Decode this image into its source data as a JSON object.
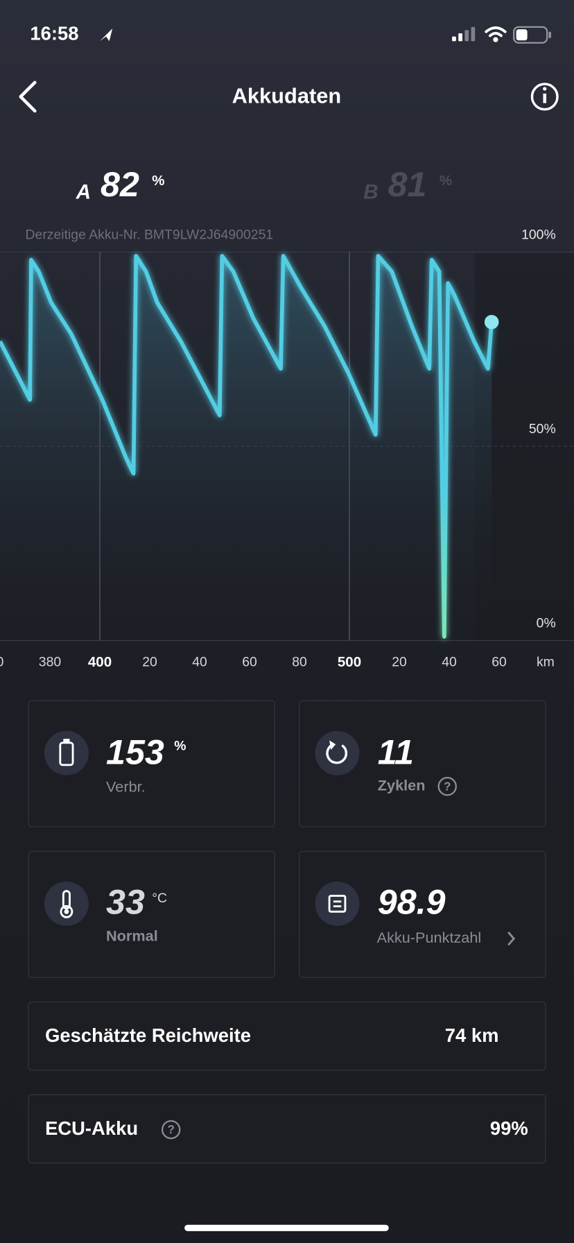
{
  "status_bar": {
    "time": "16:58"
  },
  "header": {
    "title": "Akkudaten"
  },
  "batteries": [
    {
      "label": "A",
      "value": 82,
      "unit": "%"
    },
    {
      "label": "B",
      "value": 81,
      "unit": "%"
    }
  ],
  "battery_number": "Derzeitige Akku-Nr. BMT9LW2J64900251",
  "chart_data": {
    "type": "line",
    "xlabel": "km",
    "x": [
      360,
      372,
      372.5,
      375.5,
      380.5,
      388.5,
      401,
      410.5,
      413.5,
      414.5,
      418.5,
      423,
      432.5,
      448,
      449,
      453.5,
      461.5,
      472.5,
      473.5,
      480.5,
      490,
      499.5,
      510.5,
      511.5,
      517,
      525,
      532,
      533,
      536,
      538,
      539.5,
      542,
      550,
      555.5,
      557
    ],
    "values": [
      77,
      62,
      98,
      95,
      87,
      79,
      62,
      47,
      43,
      99,
      95,
      87,
      77,
      58,
      99,
      95,
      83,
      70,
      99,
      91,
      81,
      69,
      53,
      99,
      95,
      81,
      70,
      98,
      95,
      1,
      92,
      89,
      77,
      70,
      82
    ],
    "color": "#52cde3",
    "xlim": [
      360,
      590
    ],
    "ylim": [
      0,
      100
    ],
    "xticks": [
      {
        "value": 360,
        "label": "0"
      },
      380,
      400,
      {
        "value": 420,
        "label": "20"
      },
      {
        "value": 440,
        "label": "40"
      },
      {
        "value": 460,
        "label": "60"
      },
      {
        "value": 480,
        "label": "80"
      },
      500,
      {
        "value": 520,
        "label": "20"
      },
      {
        "value": 540,
        "label": "40"
      },
      {
        "value": 560,
        "label": "60"
      }
    ],
    "yticks": [
      {
        "value": 0,
        "label": "0%"
      },
      {
        "value": 50,
        "label": "50%"
      },
      {
        "value": 100,
        "label": "100%"
      }
    ],
    "grid": true
  },
  "cards": [
    {
      "value": 153,
      "unit": "%",
      "label": "Verbr."
    },
    {
      "value": 11,
      "label": "Zyklen"
    },
    {
      "value": 33,
      "unit": "°C",
      "label": "Normal"
    },
    {
      "value": 98.9,
      "label": "Akku-Punktzahl"
    }
  ],
  "rows": [
    {
      "label": "Geschätzte Reichweite",
      "value": "74 km"
    },
    {
      "label": "ECU-Akku",
      "value": "99%"
    }
  ]
}
